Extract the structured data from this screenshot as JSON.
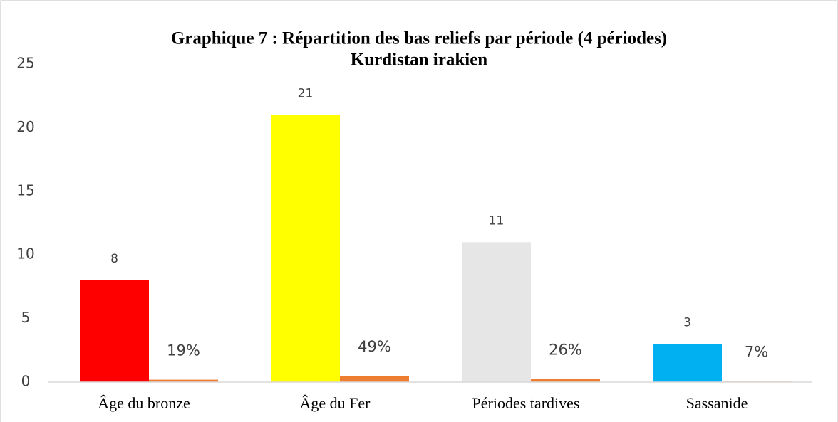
{
  "chart_data": {
    "type": "bar",
    "title": [
      "Graphique 7 : Répartition des bas reliefs par période (4 périodes)",
      "Kurdistan irakien"
    ],
    "categories": [
      "Âge du bronze",
      "Âge du Fer",
      "Périodes tardives",
      "Sassanide"
    ],
    "series": [
      {
        "colors": [
          "#ff0000",
          "#ffff00",
          "#e7e6e6",
          "#00b0f0"
        ],
        "values": [
          8,
          21,
          11,
          3
        ]
      },
      {
        "colors": [
          "#ed7d31",
          "#ed7d31",
          "#ed7d31",
          "#f8cbad"
        ],
        "values": [
          0.19,
          0.49,
          0.26,
          0.07
        ],
        "value_labels": [
          "19%",
          "49%",
          "26%",
          "7%"
        ]
      }
    ],
    "ylim": [
      0,
      25
    ],
    "yticks": [
      0,
      5,
      10,
      15,
      20,
      25
    ],
    "grid": false
  }
}
